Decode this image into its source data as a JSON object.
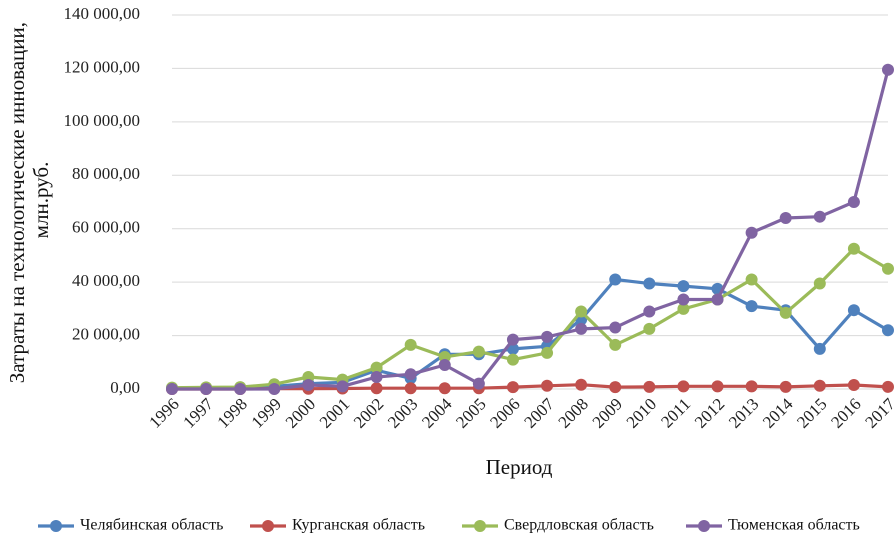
{
  "chart_data": {
    "type": "line",
    "title": "",
    "xlabel": "Период",
    "ylabel": "Затраты на технологические инновации, млн.руб.",
    "ylabel_lines": [
      "Затраты на технологические инновации,",
      "млн.руб."
    ],
    "ylim": [
      0,
      140000
    ],
    "yticks": [
      0,
      20000,
      40000,
      60000,
      80000,
      100000,
      120000,
      140000
    ],
    "ytick_labels": [
      "0,00",
      "20 000,00",
      "40 000,00",
      "60 000,00",
      "80 000,00",
      "100 000,00",
      "120 000,00",
      "140 000,00"
    ],
    "grid": true,
    "legend_position": "bottom",
    "categories": [
      "1996",
      "1997",
      "1998",
      "1999",
      "2000",
      "2001",
      "2002",
      "2003",
      "2004",
      "2005",
      "2006",
      "2007",
      "2008",
      "2009",
      "2010",
      "2011",
      "2012",
      "2013",
      "2014",
      "2015",
      "2016",
      "2017"
    ],
    "series": [
      {
        "name": "Челябинская область",
        "color": "#4f81bd",
        "values": [
          200,
          300,
          500,
          1000,
          2000,
          2500,
          7000,
          4000,
          13000,
          13000,
          15000,
          16000,
          26000,
          41000,
          39500,
          38500,
          37500,
          31000,
          29500,
          15000,
          29500,
          22000
        ]
      },
      {
        "name": "Курганская область",
        "color": "#c0504d",
        "values": [
          0,
          0,
          0,
          100,
          100,
          200,
          300,
          300,
          300,
          300,
          700,
          1200,
          1600,
          700,
          800,
          1000,
          1000,
          1000,
          800,
          1200,
          1500,
          800
        ]
      },
      {
        "name": "Свердловская область",
        "color": "#9bbb59",
        "values": [
          500,
          600,
          700,
          1800,
          4500,
          3500,
          8000,
          16500,
          12000,
          14000,
          11000,
          13500,
          29000,
          16500,
          22500,
          30000,
          33500,
          41000,
          28500,
          39500,
          52500,
          45000
        ]
      },
      {
        "name": "Тюменская область",
        "color": "#8064a2",
        "values": [
          0,
          0,
          0,
          0,
          1500,
          1000,
          4500,
          5500,
          9000,
          2000,
          18500,
          19500,
          22500,
          23000,
          29000,
          33500,
          33500,
          58500,
          64000,
          64500,
          70000,
          119500
        ]
      }
    ]
  }
}
